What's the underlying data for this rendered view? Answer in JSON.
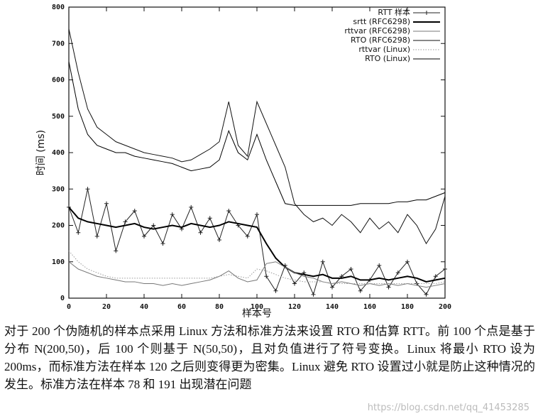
{
  "chart_data": {
    "type": "line",
    "xlabel": "样本号",
    "ylabel": "时间 (ms)",
    "x": [
      0,
      5,
      10,
      15,
      20,
      25,
      30,
      35,
      40,
      45,
      50,
      55,
      60,
      65,
      70,
      75,
      80,
      85,
      90,
      95,
      100,
      105,
      110,
      115,
      120,
      125,
      130,
      135,
      140,
      145,
      150,
      155,
      160,
      165,
      170,
      175,
      180,
      185,
      190,
      195,
      200
    ],
    "xlim": [
      0,
      200
    ],
    "xticks": [
      0,
      20,
      40,
      60,
      80,
      100,
      120,
      140,
      160,
      180,
      200
    ],
    "ylim": [
      0,
      800
    ],
    "yticks": [
      0,
      100,
      200,
      300,
      400,
      500,
      600,
      700,
      800
    ],
    "legend": "upper right",
    "series": [
      {
        "name": "RTT 样本",
        "color": "#222",
        "width": 1,
        "marker": "+",
        "values": [
          250,
          180,
          300,
          170,
          260,
          130,
          210,
          240,
          170,
          200,
          150,
          230,
          190,
          250,
          180,
          220,
          160,
          240,
          200,
          170,
          230,
          60,
          20,
          90,
          40,
          70,
          10,
          100,
          30,
          60,
          80,
          20,
          50,
          90,
          30,
          70,
          100,
          40,
          10,
          60,
          80
        ]
      },
      {
        "name": "srtt (RFC6298)",
        "color": "#000",
        "width": 2,
        "values": [
          250,
          220,
          210,
          205,
          200,
          195,
          200,
          205,
          195,
          190,
          195,
          200,
          195,
          205,
          200,
          195,
          200,
          210,
          205,
          200,
          195,
          150,
          110,
          85,
          70,
          65,
          60,
          65,
          55,
          55,
          60,
          50,
          50,
          55,
          50,
          55,
          60,
          55,
          45,
          50,
          55
        ]
      },
      {
        "name": "rttvar (RFC6298)",
        "color": "#777",
        "width": 1,
        "values": [
          100,
          80,
          70,
          60,
          55,
          50,
          45,
          45,
          40,
          40,
          35,
          40,
          35,
          40,
          45,
          50,
          60,
          75,
          55,
          45,
          50,
          95,
          100,
          85,
          70,
          60,
          55,
          45,
          40,
          45,
          40,
          35,
          40,
          35,
          40,
          35,
          40,
          35,
          30,
          35,
          40
        ]
      },
      {
        "name": "RTO (RFC6298)",
        "color": "#111",
        "width": 1,
        "values": [
          740,
          620,
          520,
          470,
          450,
          430,
          420,
          410,
          400,
          395,
          390,
          385,
          375,
          380,
          395,
          410,
          430,
          540,
          420,
          390,
          540,
          480,
          420,
          360,
          260,
          230,
          210,
          220,
          200,
          230,
          210,
          180,
          220,
          190,
          210,
          180,
          230,
          200,
          150,
          190,
          280
        ]
      },
      {
        "name": "rttvar (Linux)",
        "color": "#999",
        "width": 1,
        "dash": "dotted",
        "values": [
          130,
          100,
          80,
          70,
          60,
          55,
          55,
          55,
          55,
          55,
          55,
          55,
          55,
          55,
          55,
          55,
          60,
          65,
          60,
          55,
          80,
          75,
          65,
          55,
          50,
          45,
          45,
          45,
          40,
          40,
          40,
          40,
          40,
          40,
          40,
          40,
          40,
          40,
          40,
          40,
          45
        ]
      },
      {
        "name": "RTO (Linux)",
        "color": "#000",
        "width": 1,
        "values": [
          650,
          520,
          450,
          420,
          410,
          400,
          400,
          390,
          385,
          380,
          375,
          370,
          360,
          350,
          355,
          360,
          380,
          460,
          400,
          380,
          450,
          380,
          320,
          260,
          255,
          255,
          255,
          255,
          255,
          255,
          255,
          260,
          260,
          260,
          260,
          265,
          265,
          270,
          270,
          280,
          290
        ]
      }
    ]
  },
  "caption": "对于 200 个伪随机的样本点采用 Linux 方法和标准方法来设置 RTO 和估算 RTT。前 100 个点是基于分布 N(200,50)，后 100 个则基于 N(50,50)，且对负值进行了符号变换。Linux 将最小 RTO 设为 200ms，而标准方法在样本 120 之后则变得更为密集。Linux 避免 RTO 设置过小就是防止这种情况的发生。标准方法在样本 78 和 191 出现潜在问题",
  "watermark": "https://blog.csdn.net/qq_41453285"
}
